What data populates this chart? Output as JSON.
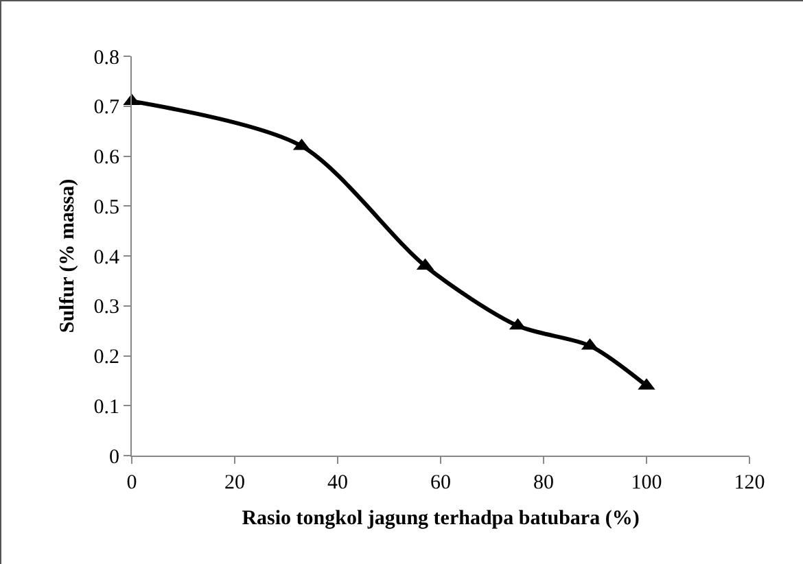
{
  "chart_data": {
    "type": "line",
    "xlabel": "Rasio tongkol jagung terhadpa batubara (%)",
    "ylabel": "Sulfur (% massa)",
    "x": [
      0,
      33,
      57,
      75,
      89,
      100
    ],
    "series": [
      {
        "color": "#000000",
        "values": [
          0.71,
          0.62,
          0.38,
          0.26,
          0.22,
          0.14
        ]
      }
    ],
    "xlim": [
      0,
      120
    ],
    "xticks": [
      0,
      20,
      40,
      60,
      80,
      100,
      120
    ],
    "ylim": [
      0,
      0.8
    ],
    "yticks": [
      0,
      0.1,
      0.2,
      0.3,
      0.4,
      0.5,
      0.6,
      0.7,
      0.8
    ],
    "grid": false,
    "legend": false,
    "marker": "triangle",
    "line_style": "solid"
  }
}
